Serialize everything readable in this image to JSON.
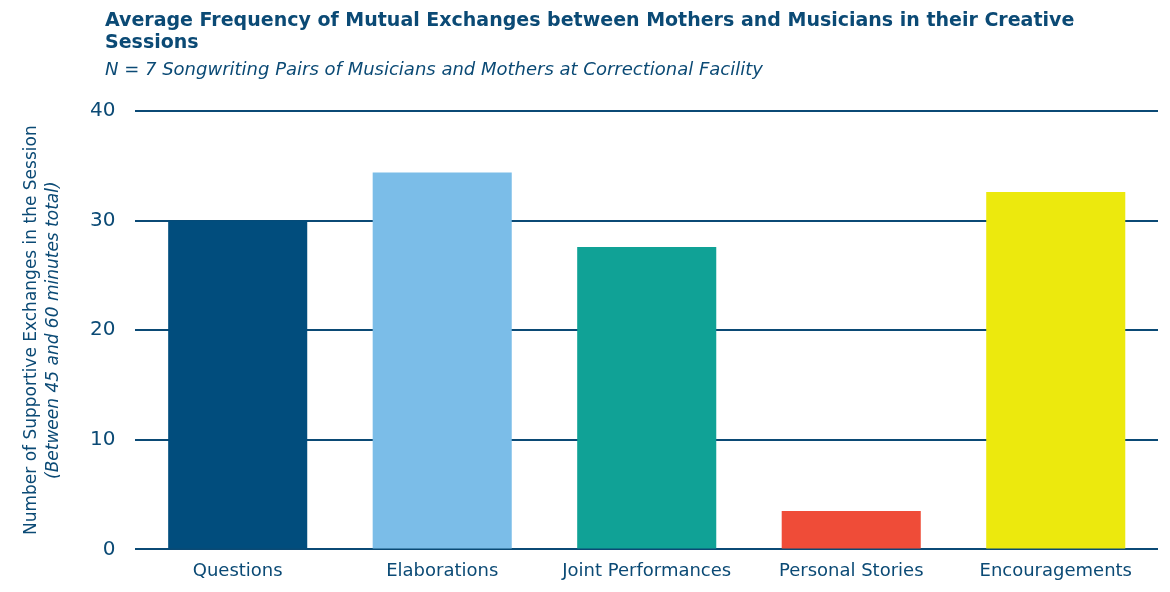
{
  "chart_data": {
    "type": "bar",
    "title": "Average Frequency of Mutual Exchanges between Mothers and Musicians in their Creative Sessions",
    "subtitle": "N = 7 Songwriting Pairs of Musicians and Mothers at Correctional Facility",
    "ylabel": "Number of Supportive Exchanges in the Session",
    "annotations": [
      "(Between 45 and 60 minutes total)"
    ],
    "categories": [
      "Questions",
      "Elaborations",
      "Joint Performances",
      "Personal Stories",
      "Encouragements"
    ],
    "values": [
      30.0,
      34.4,
      27.6,
      3.5,
      32.6
    ],
    "colors": [
      "#014d7d",
      "#7bbde8",
      "#10a296",
      "#ef4c38",
      "#ece90d"
    ],
    "ylim": [
      0,
      40
    ],
    "yticks": [
      0,
      10,
      20,
      30,
      40
    ],
    "grid": "y",
    "legend": false
  }
}
